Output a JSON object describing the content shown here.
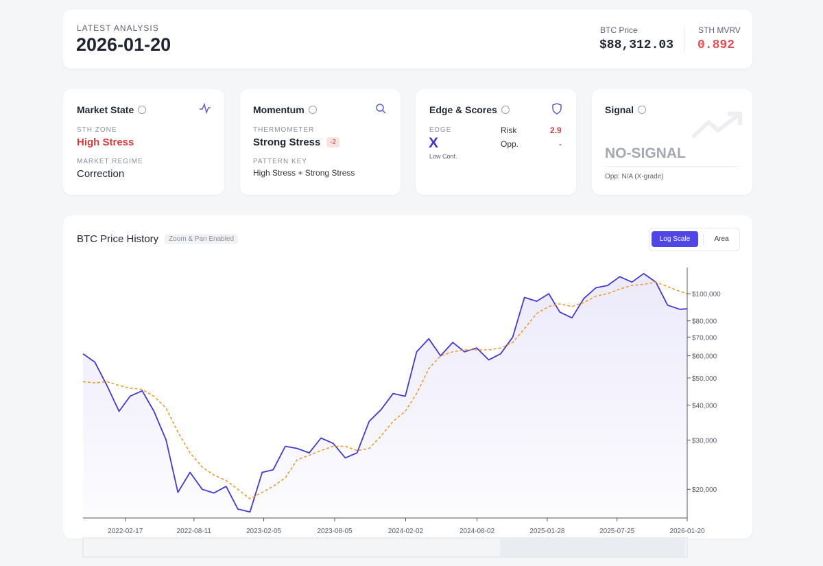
{
  "header": {
    "label": "LATEST ANALYSIS",
    "date": "2026-01-20",
    "stats": [
      {
        "label": "BTC Price",
        "value": "$88,312.03"
      },
      {
        "label": "STH MVRV",
        "value": "0.892"
      }
    ]
  },
  "cards": {
    "market_state": {
      "title": "Market State",
      "zone_label": "STH ZONE",
      "zone": "High Stress",
      "regime_label": "MARKET REGIME",
      "regime": "Correction"
    },
    "momentum": {
      "title": "Momentum",
      "thermo_label": "THERMOMETER",
      "thermo": "Strong Stress",
      "badge": -2,
      "pattern_label": "PATTERN KEY",
      "pattern": "High Stress + Strong Stress"
    },
    "edge": {
      "title": "Edge & Scores",
      "edge_label": "EDGE",
      "edge": "X",
      "confidence": "Low Conf.",
      "risk_label": "Risk",
      "risk": 2.9,
      "opp_label": "Opp.",
      "opp": "-"
    },
    "signal": {
      "title": "Signal",
      "signal": "NO-SIGNAL",
      "note": "Opp: N/A (X-grade)"
    }
  },
  "chart_data": {
    "type": "line",
    "title": "BTC Price History",
    "badge": "Zoom & Pan Enabled",
    "buttons": [
      "Log Scale",
      "Area"
    ],
    "log_scale": true,
    "x": [
      "2021-11-01",
      "2021-12-01",
      "2022-01-01",
      "2022-02-01",
      "2022-03-01",
      "2022-04-01",
      "2022-05-01",
      "2022-06-01",
      "2022-07-01",
      "2022-08-01",
      "2022-09-01",
      "2022-10-01",
      "2022-11-01",
      "2022-12-01",
      "2023-01-01",
      "2023-02-01",
      "2023-03-01",
      "2023-04-01",
      "2023-05-01",
      "2023-06-01",
      "2023-07-01",
      "2023-08-01",
      "2023-09-01",
      "2023-10-01",
      "2023-11-01",
      "2023-12-01",
      "2024-01-01",
      "2024-02-01",
      "2024-03-01",
      "2024-04-01",
      "2024-05-01",
      "2024-06-01",
      "2024-07-01",
      "2024-08-01",
      "2024-09-01",
      "2024-10-01",
      "2024-11-01",
      "2024-12-01",
      "2025-01-01",
      "2025-02-01",
      "2025-03-01",
      "2025-04-01",
      "2025-05-01",
      "2025-06-01",
      "2025-07-01",
      "2025-08-01",
      "2025-09-01",
      "2025-10-01",
      "2025-11-01",
      "2025-12-01",
      "2026-01-01",
      "2026-01-20"
    ],
    "series": [
      {
        "color": "#4338ca",
        "fill": true,
        "dashed": false,
        "values": [
          61000,
          57000,
          47000,
          38000,
          43000,
          45000,
          38000,
          30000,
          19500,
          23000,
          20000,
          19400,
          20500,
          17000,
          16600,
          23000,
          23500,
          28500,
          28000,
          27000,
          30500,
          29200,
          25900,
          27000,
          35000,
          38500,
          44000,
          43000,
          62000,
          69000,
          60000,
          67000,
          62000,
          64000,
          58000,
          61000,
          70000,
          97000,
          94000,
          100000,
          86000,
          82000,
          96000,
          105000,
          107000,
          115000,
          110000,
          118000,
          110000,
          91000,
          88000,
          88312
        ]
      },
      {
        "color": "#f0932b",
        "fill": false,
        "dashed": true,
        "values": [
          48500,
          48000,
          48500,
          47000,
          46000,
          45500,
          43000,
          39000,
          32000,
          27000,
          24000,
          22500,
          21500,
          20000,
          18500,
          19500,
          20500,
          22000,
          25500,
          26500,
          27500,
          28500,
          28500,
          27500,
          28000,
          31000,
          35000,
          38000,
          44000,
          54000,
          60000,
          62000,
          63000,
          63000,
          63000,
          64000,
          67000,
          75000,
          85000,
          90000,
          92000,
          90000,
          93000,
          98000,
          100000,
          104000,
          107000,
          108000,
          110000,
          106000,
          102000,
          100000
        ]
      }
    ],
    "xlim": [
      "2021-11-01",
      "2026-01-20"
    ],
    "xticks": [
      "2022-02-17",
      "2022-08-11",
      "2023-02-05",
      "2023-08-05",
      "2024-02-02",
      "2024-08-02",
      "2025-01-28",
      "2025-07-25",
      "2026-01-20"
    ],
    "ylim": [
      15800,
      124000
    ],
    "yticks": [
      {
        "value": 20000,
        "label": "$20,000"
      },
      {
        "value": 30000,
        "label": "$30,000"
      },
      {
        "value": 40000,
        "label": "$40,000"
      },
      {
        "value": 50000,
        "label": "$50,000"
      },
      {
        "value": 60000,
        "label": "$60,000"
      },
      {
        "value": 70000,
        "label": "$70,000"
      },
      {
        "value": 80000,
        "label": "$80,000"
      },
      {
        "value": 100000,
        "label": "$100,000"
      }
    ]
  }
}
